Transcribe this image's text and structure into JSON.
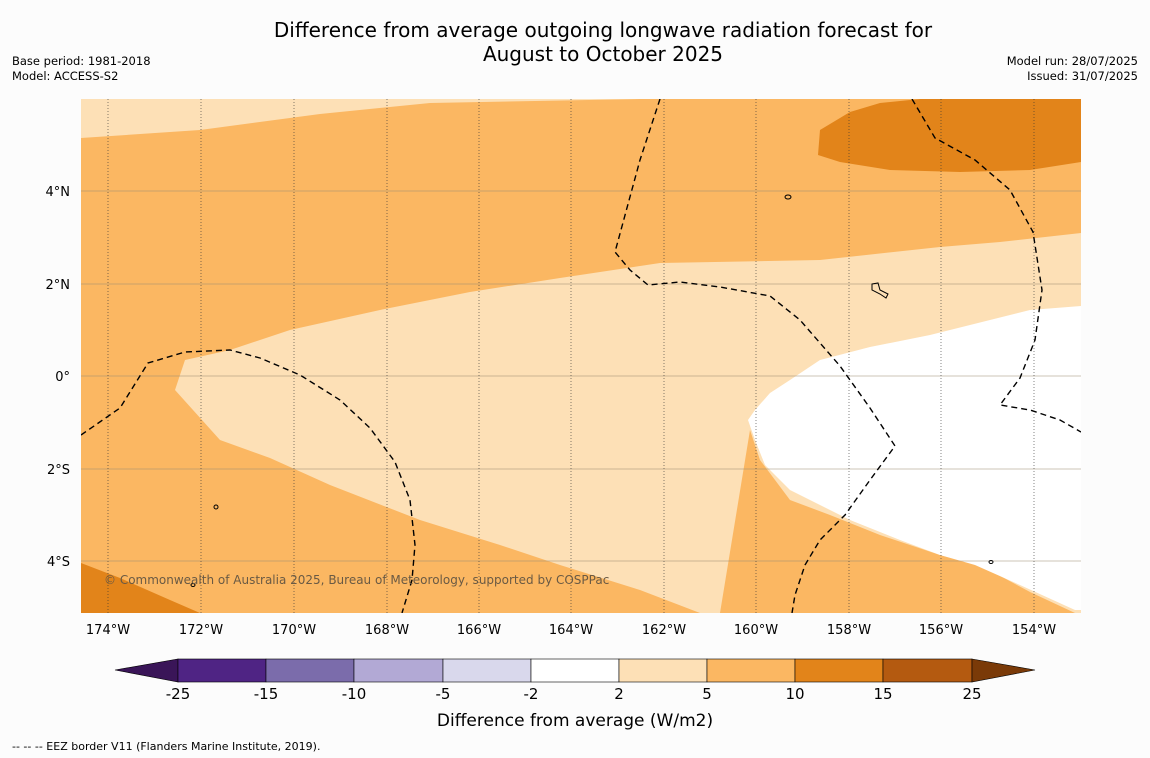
{
  "title_line1": "Difference from average outgoing longwave radiation forecast for",
  "title_line2": "August to October 2025",
  "base_period": "Base period: 1981-2018",
  "model": "Model: ACCESS-S2",
  "model_run": "Model run: 28/07/2025",
  "issued": "Issued: 31/07/2025",
  "copyright": "© Commonwealth of Australia 2025, Bureau of Meteorology, supported by COSPPac",
  "footer_note": "--  --  -- EEZ border V11 (Flanders Marine Institute, 2019).",
  "lon_labels": [
    "174°W",
    "172°W",
    "170°W",
    "168°W",
    "166°W",
    "164°W",
    "162°W",
    "160°W",
    "158°W",
    "156°W",
    "154°W"
  ],
  "lat_labels": [
    "4°N",
    "2°N",
    "0°",
    "2°S",
    "4°S"
  ],
  "colorbar": {
    "title": "Difference from average (W/m2)",
    "tick_labels": [
      "-25",
      "-15",
      "-10",
      "-5",
      "-2",
      "2",
      "5",
      "10",
      "15",
      "25"
    ],
    "colors": [
      "#3a1558",
      "#4f2484",
      "#7b6cab",
      "#b2a9d5",
      "#d9d8ec",
      "#ffffff",
      "#fde0b6",
      "#fbb762",
      "#e2841a",
      "#b45a10",
      "#7a3a08"
    ]
  },
  "map_colors": {
    "light": "#fde0b6",
    "medium": "#fbb762",
    "dark": "#e2841a",
    "white": "#ffffff"
  }
}
